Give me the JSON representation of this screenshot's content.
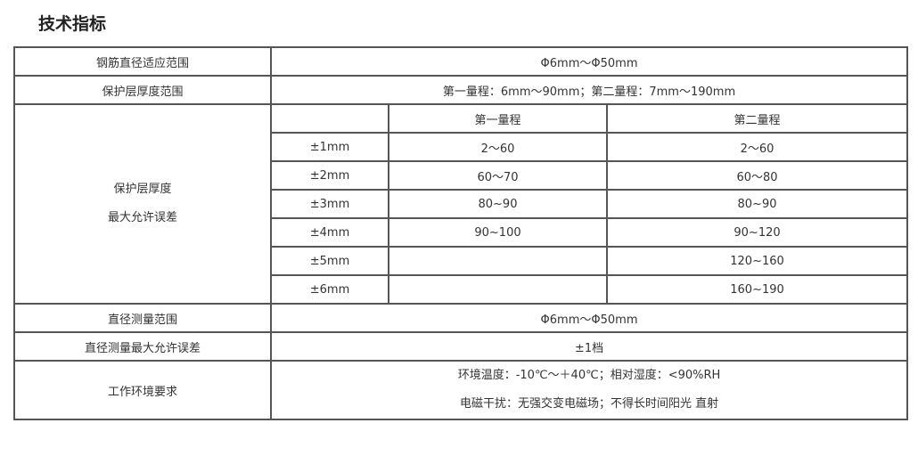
{
  "title": "技术指标",
  "rows": {
    "rebar_range": {
      "label": "钢筋直径适应范围",
      "value": "Φ6mm～Φ50mm"
    },
    "cover_range": {
      "label": "保护层厚度范围",
      "value": "第一量程：6mm～90mm；第二量程：7mm～190mm"
    },
    "cover_error": {
      "label_line1": "保护层厚度",
      "label_line2": "最大允许误差",
      "headers": [
        "第一量程",
        "第二量程"
      ],
      "items": [
        {
          "error": "±1mm",
          "range1": "2～60",
          "range2": "2～60"
        },
        {
          "error": "±2mm",
          "range1": "60～70",
          "range2": "60～80"
        },
        {
          "error": "±3mm",
          "range1": "80~90",
          "range2": "80~90"
        },
        {
          "error": "±4mm",
          "range1": "90~100",
          "range2": "90~120"
        },
        {
          "error": "±5mm",
          "range1": "",
          "range2": "120~160"
        },
        {
          "error": "±6mm",
          "range1": "",
          "range2": "160~190"
        }
      ]
    },
    "diameter_range": {
      "label": "直径测量范围",
      "value": "Φ6mm～Φ50mm"
    },
    "diameter_error": {
      "label": "直径测量最大允许误差",
      "value": "±1档"
    },
    "environment": {
      "label": "工作环境要求",
      "line1": "环境温度：-10℃～＋40℃；相对湿度：<90%RH",
      "line2": "电磁干扰：无强交变电磁场；不得长时间阳光 直射"
    }
  }
}
